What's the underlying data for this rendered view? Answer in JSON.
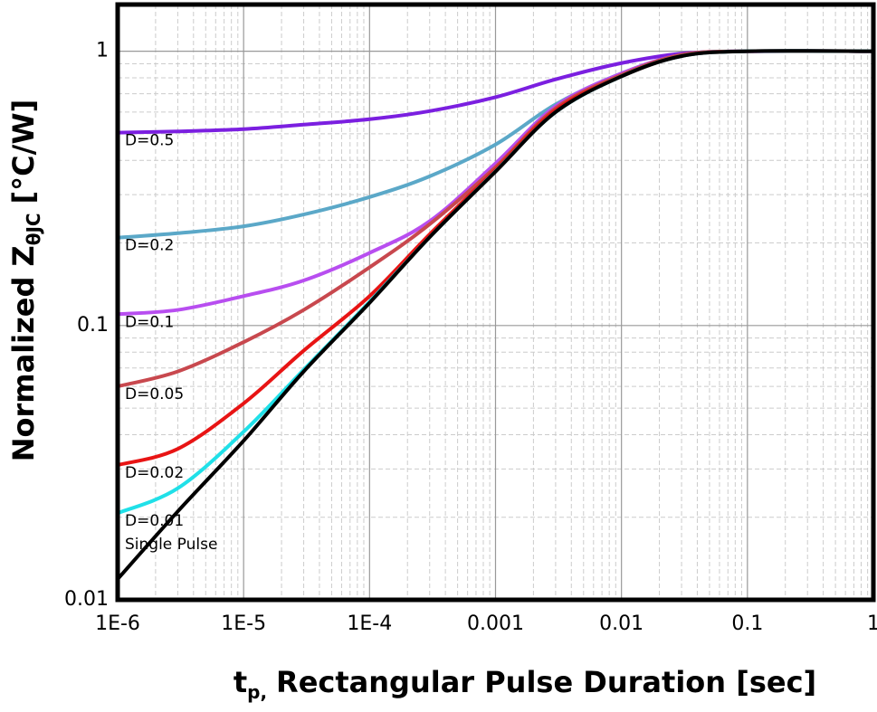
{
  "chart_data": {
    "type": "line",
    "x_label": {
      "main": "t",
      "sub": "p,",
      "rest": "Rectangular Pulse Duration [sec]"
    },
    "y_label": {
      "main": "Normalized Z",
      "sub": "θJC",
      "rest": "[°C/W]"
    },
    "x_scale": "log",
    "y_scale": "log",
    "grid": true,
    "minor_grid": true,
    "xlim": [
      1e-06,
      1
    ],
    "ylim": [
      0.01,
      1.48
    ],
    "xticks": [
      {
        "value": 1e-06,
        "label": "1E-6"
      },
      {
        "value": 1e-05,
        "label": "1E-5"
      },
      {
        "value": 0.0001,
        "label": "1E-4"
      },
      0.001,
      0.01,
      0.1,
      1
    ],
    "yticks": [
      0.01,
      0.1,
      1
    ],
    "x": [
      1e-06,
      3e-06,
      1e-05,
      3e-05,
      0.0001,
      0.0003,
      0.001,
      0.003,
      0.01,
      0.03,
      0.1,
      1
    ],
    "series": [
      {
        "name": "D=0.5",
        "color": "#7b1fe0",
        "values": [
          0.505,
          0.51,
          0.52,
          0.54,
          0.565,
          0.605,
          0.68,
          0.79,
          0.905,
          0.98,
          1,
          1
        ]
      },
      {
        "name": "D=0.2",
        "color": "#5ba8c8",
        "values": [
          0.209,
          0.217,
          0.23,
          0.254,
          0.294,
          0.35,
          0.457,
          0.64,
          0.83,
          0.97,
          1,
          1
        ]
      },
      {
        "name": "D=0.1",
        "color": "#b84ef0",
        "values": [
          0.11,
          0.114,
          0.128,
          0.146,
          0.184,
          0.24,
          0.39,
          0.63,
          0.83,
          0.97,
          1,
          1
        ]
      },
      {
        "name": "D=0.05",
        "color": "#c8484e",
        "values": [
          0.06,
          0.068,
          0.087,
          0.114,
          0.163,
          0.234,
          0.378,
          0.62,
          0.82,
          0.97,
          1,
          1
        ]
      },
      {
        "name": "D=0.02",
        "color": "#e81414",
        "values": [
          0.031,
          0.0355,
          0.052,
          0.081,
          0.128,
          0.215,
          0.37,
          0.61,
          0.81,
          0.96,
          1,
          1
        ]
      },
      {
        "name": "D=0.01",
        "color": "#20e0e8",
        "values": [
          0.0207,
          0.0255,
          0.041,
          0.069,
          0.122,
          0.21,
          0.365,
          0.6,
          0.81,
          0.96,
          1,
          1
        ]
      },
      {
        "name": "Single Pulse",
        "color": "#000000",
        "values": [
          0.0119,
          0.021,
          0.038,
          0.068,
          0.121,
          0.21,
          0.364,
          0.6,
          0.81,
          0.96,
          1,
          1
        ]
      }
    ]
  }
}
